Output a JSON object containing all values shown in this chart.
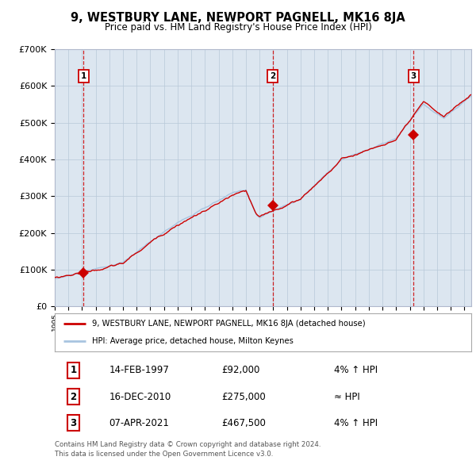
{
  "title": "9, WESTBURY LANE, NEWPORT PAGNELL, MK16 8JA",
  "subtitle": "Price paid vs. HM Land Registry's House Price Index (HPI)",
  "background_color": "#dce6f0",
  "outer_bg_color": "#ffffff",
  "hpi_line_color": "#a8c4e0",
  "price_line_color": "#cc0000",
  "marker_color": "#cc0000",
  "vline_color": "#cc0000",
  "ylim": [
    0,
    700000
  ],
  "yticks": [
    0,
    100000,
    200000,
    300000,
    400000,
    500000,
    600000,
    700000
  ],
  "ytick_labels": [
    "£0",
    "£100K",
    "£200K",
    "£300K",
    "£400K",
    "£500K",
    "£600K",
    "£700K"
  ],
  "transactions": [
    {
      "num": 1,
      "date": "14-FEB-1997",
      "date_x": 1997.12,
      "price": 92000
    },
    {
      "num": 2,
      "date": "16-DEC-2010",
      "date_x": 2010.96,
      "price": 275000
    },
    {
      "num": 3,
      "date": "07-APR-2021",
      "date_x": 2021.27,
      "price": 467500
    }
  ],
  "legend_label_red": "9, WESTBURY LANE, NEWPORT PAGNELL, MK16 8JA (detached house)",
  "legend_label_blue": "HPI: Average price, detached house, Milton Keynes",
  "footer1": "Contains HM Land Registry data © Crown copyright and database right 2024.",
  "footer2": "This data is licensed under the Open Government Licence v3.0.",
  "xmin": 1995.0,
  "xmax": 2025.5,
  "label_box_color": "#ffffff",
  "label_box_edge": "#cc0000",
  "label_text_color": "#000000",
  "table_rows": [
    {
      "num": "1",
      "date": "14-FEB-1997",
      "price": "£92,000",
      "rel": "4% ↑ HPI"
    },
    {
      "num": "2",
      "date": "16-DEC-2010",
      "price": "£275,000",
      "rel": "≈ HPI"
    },
    {
      "num": "3",
      "date": "07-APR-2021",
      "price": "£467,500",
      "rel": "4% ↑ HPI"
    }
  ]
}
